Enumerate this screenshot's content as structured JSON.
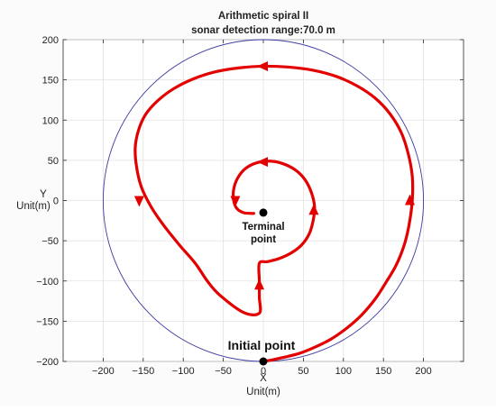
{
  "chart_data": {
    "type": "line",
    "title": "Arithmetic spiral II",
    "subtitle": "sonar detection range:70.0 m",
    "xlabel_lines": [
      "X",
      "Unit(m)"
    ],
    "ylabel_lines": [
      "Y",
      "Unit(m)"
    ],
    "xlim": [
      -250,
      250
    ],
    "ylim": [
      -200,
      200
    ],
    "x_ticks": [
      -200,
      -150,
      -100,
      -50,
      0,
      50,
      100,
      150,
      200
    ],
    "y_ticks": [
      -200,
      -150,
      -100,
      -50,
      0,
      50,
      100,
      150,
      200
    ],
    "x_tick_labels": [
      "−200",
      "−150",
      "−100",
      "−50",
      "0",
      "50",
      "100",
      "150",
      "200"
    ],
    "y_tick_labels": [
      "−200",
      "−150",
      "−100",
      "−50",
      "0",
      "50",
      "100",
      "150",
      "200"
    ],
    "grid": true,
    "colors": {
      "path": "#e30000",
      "circle": "#3c3ca0",
      "grid": "#e2e2e2",
      "marker": "#000000"
    },
    "boundary_circle": {
      "cx": 0,
      "cy": 0,
      "r": 200
    },
    "series": [
      {
        "x": [
          0,
          12,
          25,
          45,
          65,
          85,
          105,
          123,
          140,
          153,
          166,
          176,
          182,
          186,
          186,
          181,
          172,
          158,
          140,
          118,
          92,
          62,
          30,
          0,
          -30,
          -60,
          -88,
          -112,
          -132,
          -147,
          -156,
          -160,
          -158,
          -152,
          -140,
          -125,
          -105,
          -85,
          -70,
          -55,
          -25,
          -5,
          -5,
          -5,
          -5,
          5,
          20,
          35,
          48,
          57,
          62,
          64,
          60,
          52,
          40,
          24,
          8,
          -8,
          -22,
          -32,
          -37,
          -37,
          -33,
          -25,
          -15,
          -12
        ],
        "y": [
          -200,
          -198,
          -195,
          -190,
          -182,
          -172,
          -158,
          -142,
          -122,
          -102,
          -80,
          -55,
          -30,
          0,
          30,
          58,
          85,
          108,
          127,
          142,
          154,
          162,
          166,
          167,
          165,
          160,
          151,
          139,
          124,
          107,
          87,
          65,
          40,
          16,
          -8,
          -30,
          -55,
          -78,
          -100,
          -117,
          -139,
          -140,
          -120,
          -100,
          -78,
          -76,
          -72,
          -65,
          -55,
          -42,
          -26,
          -8,
          10,
          26,
          38,
          46,
          49,
          47,
          40,
          28,
          14,
          0,
          -10,
          -15,
          -16,
          -16
        ]
      }
    ],
    "direction_arrows": [
      {
        "x": 183,
        "y": 0,
        "direction": "up"
      },
      {
        "x": 0,
        "y": 167,
        "direction": "left"
      },
      {
        "x": -155,
        "y": 0,
        "direction": "down"
      },
      {
        "x": -5,
        "y": -105,
        "direction": "up"
      },
      {
        "x": 63,
        "y": -12,
        "direction": "up"
      },
      {
        "x": 0,
        "y": 48,
        "direction": "left"
      },
      {
        "x": -35,
        "y": 0,
        "direction": "down"
      }
    ],
    "markers": [
      {
        "name": "Initial point",
        "x": 0,
        "y": -200
      },
      {
        "name": "Terminal point",
        "x": 0,
        "y": -15
      }
    ],
    "annotations": {
      "initial": "Initial point",
      "terminal_line1": "Terminal",
      "terminal_line2": "point"
    }
  }
}
